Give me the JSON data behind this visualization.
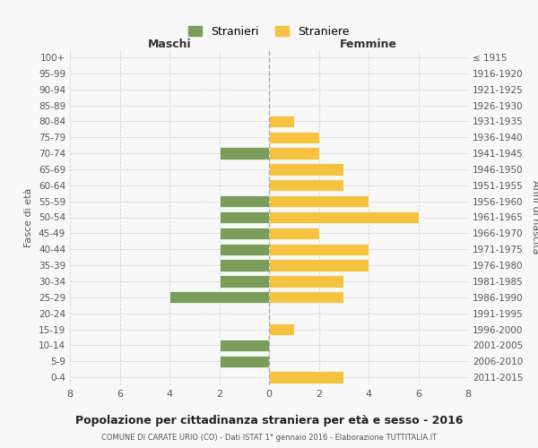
{
  "age_groups": [
    "100+",
    "95-99",
    "90-94",
    "85-89",
    "80-84",
    "75-79",
    "70-74",
    "65-69",
    "60-64",
    "55-59",
    "50-54",
    "45-49",
    "40-44",
    "35-39",
    "30-34",
    "25-29",
    "20-24",
    "15-19",
    "10-14",
    "5-9",
    "0-4"
  ],
  "birth_years": [
    "≤ 1915",
    "1916-1920",
    "1921-1925",
    "1926-1930",
    "1931-1935",
    "1936-1940",
    "1941-1945",
    "1946-1950",
    "1951-1955",
    "1956-1960",
    "1961-1965",
    "1966-1970",
    "1971-1975",
    "1976-1980",
    "1981-1985",
    "1986-1990",
    "1991-1995",
    "1996-2000",
    "2001-2005",
    "2006-2010",
    "2011-2015"
  ],
  "maschi": [
    0,
    0,
    0,
    0,
    0,
    0,
    2,
    0,
    0,
    2,
    2,
    2,
    2,
    2,
    2,
    4,
    0,
    0,
    2,
    2,
    0
  ],
  "femmine": [
    0,
    0,
    0,
    0,
    1,
    2,
    2,
    3,
    3,
    4,
    6,
    2,
    4,
    4,
    3,
    3,
    0,
    1,
    0,
    0,
    3
  ],
  "color_maschi": "#7a9e5a",
  "color_femmine": "#f5c242",
  "title": "Popolazione per cittadinanza straniera per età e sesso - 2016",
  "subtitle": "COMUNE DI CARATE URIO (CO) - Dati ISTAT 1° gennaio 2016 - Elaborazione TUTTITALIA.IT",
  "xlabel_left": "Maschi",
  "xlabel_right": "Femmine",
  "ylabel_left": "Fasce di età",
  "ylabel_right": "Anni di nascita",
  "legend_maschi": "Stranieri",
  "legend_femmine": "Straniere",
  "xlim": 8,
  "bg_color": "#f8f8f8",
  "grid_color": "#cccccc",
  "text_color": "#555555"
}
